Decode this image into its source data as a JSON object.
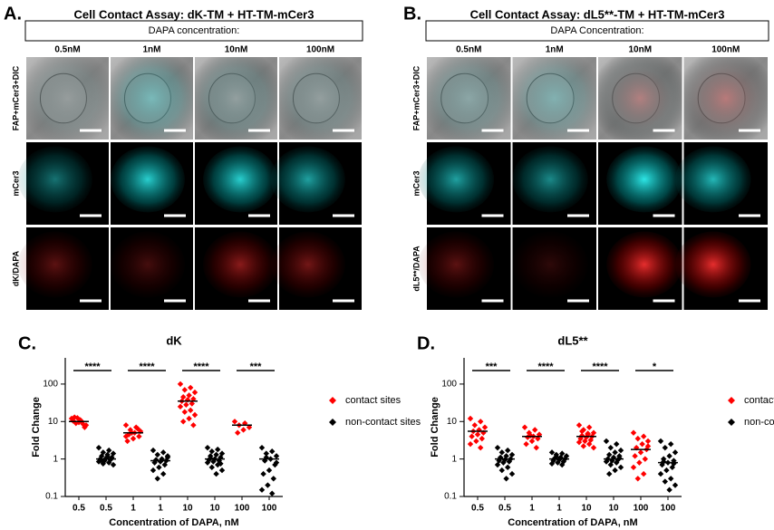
{
  "panels": [
    {
      "letter": "A.",
      "title": "Cell Contact Assay: dK-TM + HT-TM-mCer3",
      "header": "DAPA concentration:",
      "columns": [
        "0.5nM",
        "1nM",
        "10nM",
        "100nM"
      ],
      "rows": [
        "FAP+mCer3+DIC",
        "mCer3",
        "dK/DAPA"
      ]
    },
    {
      "letter": "B.",
      "title": "Cell Contact Assay: dL5**-TM + HT-TM-mCer3",
      "header": "DAPA Concentration:",
      "columns": [
        "0.5nM",
        "1nM",
        "10nM",
        "100nM"
      ],
      "rows": [
        "FAP+mCer3+DIC",
        "mCer3",
        "dL5**/DAPA"
      ]
    }
  ],
  "chart_data": [
    {
      "type": "scatter",
      "panel": "C.",
      "title": "dK",
      "xlabel": "Concentration of DAPA, nM",
      "ylabel": "Fold Change",
      "categories": [
        "0.5",
        "0.5",
        "1",
        "1",
        "10",
        "10",
        "100",
        "100"
      ],
      "ylim": [
        0.1,
        500
      ],
      "yticks": [
        0.1,
        1,
        10,
        100
      ],
      "log_y": true,
      "legend": "right",
      "significance": [
        "****",
        "****",
        "****",
        "***"
      ],
      "series": [
        {
          "name": "contact sites",
          "color": "#ff0000",
          "marker": "diamond",
          "values": [
            [
              12,
              10,
              9,
              8,
              11,
              13,
              7,
              9.5,
              10.5,
              8.5,
              12.5
            ],
            null,
            [
              8,
              7,
              6,
              5.5,
              5,
              4.5,
              4,
              3.5,
              3,
              6.5,
              5,
              4
            ],
            null,
            [
              100,
              80,
              70,
              60,
              50,
              45,
              40,
              38,
              35,
              30,
              28,
              25,
              20,
              18,
              15,
              12,
              10,
              8
            ],
            null,
            [
              10,
              9,
              8,
              7,
              6,
              5
            ],
            null
          ],
          "medians": [
            10,
            null,
            5,
            null,
            35,
            null,
            8,
            null
          ]
        },
        {
          "name": "non-contact sites",
          "color": "#000000",
          "marker": "diamond",
          "values": [
            null,
            [
              2,
              1.7,
              1.5,
              1.4,
              1.3,
              1.2,
              1.1,
              1.05,
              1,
              0.95,
              0.9,
              0.85,
              0.8,
              0.75,
              0.7,
              1.15,
              0.9
            ],
            null,
            [
              1.7,
              1.5,
              1.3,
              1.1,
              1,
              0.95,
              0.9,
              0.85,
              0.8,
              0.7,
              0.6,
              0.5,
              0.4,
              0.3,
              1.2
            ],
            null,
            [
              2,
              1.8,
              1.6,
              1.4,
              1.3,
              1.2,
              1.1,
              1,
              0.95,
              0.9,
              0.85,
              0.8,
              0.7,
              0.6,
              0.5,
              0.4,
              1.05,
              0.75
            ],
            null,
            [
              2,
              1.6,
              1.4,
              1.2,
              1,
              0.9,
              0.7,
              0.5,
              0.4,
              0.3,
              0.2,
              0.15,
              0.12,
              1.1,
              0.8
            ]
          ],
          "medians": [
            null,
            1,
            null,
            0.9,
            null,
            1,
            null,
            1
          ]
        }
      ]
    },
    {
      "type": "scatter",
      "panel": "D.",
      "title": "dL5**",
      "xlabel": "Concentration of DAPA, nM",
      "ylabel": "Fold Change",
      "categories": [
        "0.5",
        "0.5",
        "1",
        "1",
        "10",
        "10",
        "100",
        "100"
      ],
      "ylim": [
        0.1,
        500
      ],
      "yticks": [
        0.1,
        1,
        10,
        100
      ],
      "log_y": true,
      "legend": "right",
      "significance": [
        "***",
        "****",
        "****",
        "*"
      ],
      "series": [
        {
          "name": "contact sites",
          "color": "#ff0000",
          "marker": "diamond",
          "values": [
            [
              12,
              10,
              8,
              7,
              6,
              5.5,
              5,
              4.5,
              4,
              3.5,
              3,
              2.5,
              2
            ],
            null,
            [
              7,
              6,
              5,
              4.5,
              4,
              3.8,
              3.5,
              3,
              2.5,
              2,
              4.2
            ],
            null,
            [
              8,
              7,
              6,
              5,
              4.5,
              4.2,
              4,
              3.8,
              3.5,
              3.2,
              3,
              2.8,
              2.5,
              2.2,
              2,
              4.8,
              5.5
            ],
            null,
            [
              5,
              4,
              3.5,
              3,
              2.5,
              2,
              1.8,
              1.5,
              1.2,
              1,
              0.8,
              0.6,
              0.4,
              0.3,
              2.2
            ],
            null
          ],
          "medians": [
            5.5,
            null,
            4,
            null,
            4,
            null,
            1.8,
            null
          ]
        },
        {
          "name": "non-contact sites",
          "color": "#000000",
          "marker": "diamond",
          "values": [
            null,
            [
              2,
              1.7,
              1.5,
              1.3,
              1.2,
              1.1,
              1,
              0.95,
              0.9,
              0.85,
              0.8,
              0.7,
              0.6,
              0.5,
              0.4,
              0.3,
              1.05
            ],
            null,
            [
              1.5,
              1.4,
              1.3,
              1.2,
              1.1,
              1.05,
              1,
              0.95,
              0.9,
              0.85,
              0.8,
              0.75,
              0.7,
              1.15
            ],
            null,
            [
              3,
              2.5,
              2,
              1.7,
              1.5,
              1.3,
              1.2,
              1.1,
              1,
              0.95,
              0.9,
              0.85,
              0.8,
              0.7,
              0.6,
              0.5,
              0.4,
              1.05
            ],
            null,
            [
              3,
              2.5,
              2,
              1.5,
              1.2,
              1,
              0.9,
              0.8,
              0.7,
              0.6,
              0.5,
              0.4,
              0.3,
              0.25,
              0.2,
              0.15,
              0.85,
              0.75
            ]
          ],
          "medians": [
            null,
            1,
            null,
            1,
            null,
            1,
            null,
            0.8
          ]
        }
      ]
    }
  ]
}
